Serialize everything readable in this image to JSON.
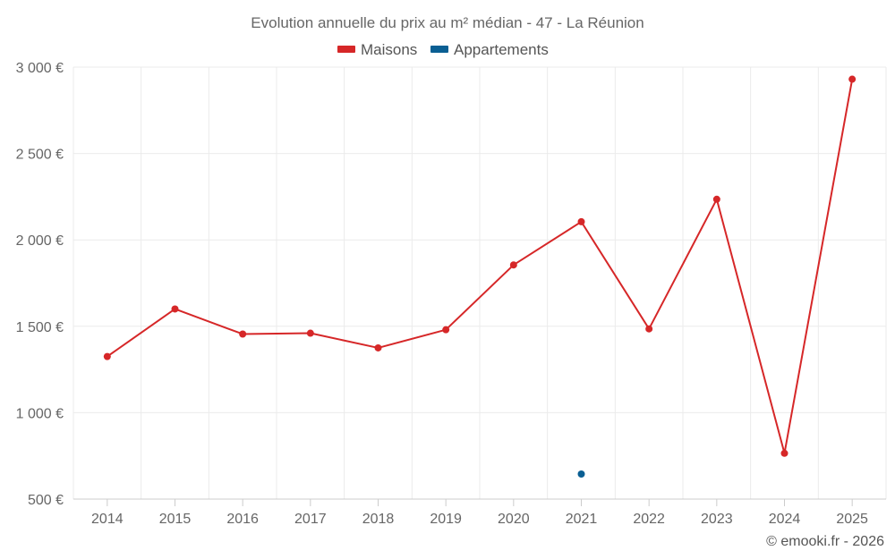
{
  "chart_data": {
    "type": "line",
    "title": "Evolution annuelle du prix au m² médian - 47 - La Réunion",
    "categories": [
      "2014",
      "2015",
      "2016",
      "2017",
      "2018",
      "2019",
      "2020",
      "2021",
      "2022",
      "2023",
      "2024",
      "2025"
    ],
    "series": [
      {
        "name": "Maisons",
        "color": "#d62728",
        "values": [
          1325,
          1600,
          1455,
          1460,
          1375,
          1480,
          1855,
          2105,
          1485,
          2235,
          765,
          2930
        ]
      },
      {
        "name": "Appartements",
        "color": "#0a5f93",
        "values": [
          null,
          null,
          null,
          null,
          null,
          null,
          null,
          645,
          null,
          null,
          null,
          null
        ]
      }
    ],
    "y_ticks": [
      "3 000 €",
      "2 500 €",
      "2 000 €",
      "1 500 €",
      "1 000 €",
      "500 €"
    ],
    "y_tick_values": [
      3000,
      2500,
      2000,
      1500,
      1000,
      500
    ],
    "ylim": [
      500,
      3000
    ],
    "grid": true,
    "legend": "top-center",
    "xlabel": "",
    "ylabel": ""
  },
  "credit": "© emooki.fr - 2026"
}
